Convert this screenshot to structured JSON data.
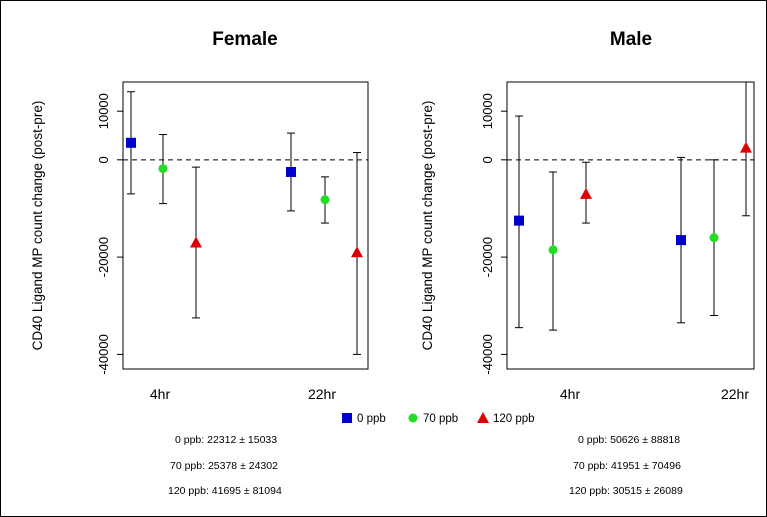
{
  "chart_data": [
    {
      "type": "scatter",
      "title": "Female",
      "ylabel": "CD40 Ligand MP count change (post-pre)",
      "xlabel": "",
      "categories": [
        "4hr",
        "22hr"
      ],
      "ylim": [
        -43000,
        16000
      ],
      "yticks": [
        -40000,
        -20000,
        0,
        10000
      ],
      "reference_line": 0,
      "series": [
        {
          "name": "0 ppb",
          "color": "#0000CC",
          "marker": "square",
          "points": [
            {
              "category": "4hr",
              "y": 3500,
              "low": -7000,
              "high": 14000
            },
            {
              "category": "22hr",
              "y": -2500,
              "low": -10500,
              "high": 5500
            }
          ]
        },
        {
          "name": "70 ppb",
          "color": "#22DD22",
          "marker": "circle",
          "points": [
            {
              "category": "4hr",
              "y": -1800,
              "low": -9000,
              "high": 5200
            },
            {
              "category": "22hr",
              "y": -8200,
              "low": -13000,
              "high": -3500
            }
          ]
        },
        {
          "name": "120 ppb",
          "color": "#DD0000",
          "marker": "triangle",
          "points": [
            {
              "category": "4hr",
              "y": -17000,
              "low": -32500,
              "high": -1500
            },
            {
              "category": "22hr",
              "y": -19000,
              "low": -40000,
              "high": 1500
            }
          ]
        }
      ]
    },
    {
      "type": "scatter",
      "title": "Male",
      "ylabel": "CD40 Ligand MP count change (post-pre)",
      "xlabel": "",
      "categories": [
        "4hr",
        "22hr"
      ],
      "ylim": [
        -43000,
        16000
      ],
      "yticks": [
        -40000,
        -20000,
        0,
        10000
      ],
      "reference_line": 0,
      "series": [
        {
          "name": "0 ppb",
          "color": "#0000CC",
          "marker": "square",
          "points": [
            {
              "category": "4hr",
              "y": -12500,
              "low": -34500,
              "high": 9000
            },
            {
              "category": "22hr",
              "y": -16500,
              "low": -33500,
              "high": 500
            }
          ]
        },
        {
          "name": "70 ppb",
          "color": "#22DD22",
          "marker": "circle",
          "points": [
            {
              "category": "4hr",
              "y": -18500,
              "low": -35000,
              "high": -2500
            },
            {
              "category": "22hr",
              "y": -16000,
              "low": -32000,
              "high": 0
            }
          ]
        },
        {
          "name": "120 ppb",
          "color": "#DD0000",
          "marker": "triangle",
          "points": [
            {
              "category": "4hr",
              "y": -7000,
              "low": -13000,
              "high": -500
            },
            {
              "category": "22hr",
              "y": 2500,
              "low": -11500,
              "high": 16000
            }
          ]
        }
      ]
    }
  ],
  "legend": [
    {
      "label": "0 ppb",
      "color": "#0000CC",
      "marker": "square"
    },
    {
      "label": "70 ppb",
      "color": "#22DD22",
      "marker": "circle"
    },
    {
      "label": "120 ppb",
      "color": "#DD0000",
      "marker": "triangle"
    }
  ],
  "stats": {
    "female": [
      "0 ppb: 22312 ± 15033",
      "70 ppb: 25378 ± 24302",
      "120 ppb: 41695 ± 81094"
    ],
    "male": [
      "0 ppb: 50626 ± 88818",
      "70 ppb: 41951 ± 70496",
      "120 ppb: 30515 ± 26089"
    ]
  }
}
